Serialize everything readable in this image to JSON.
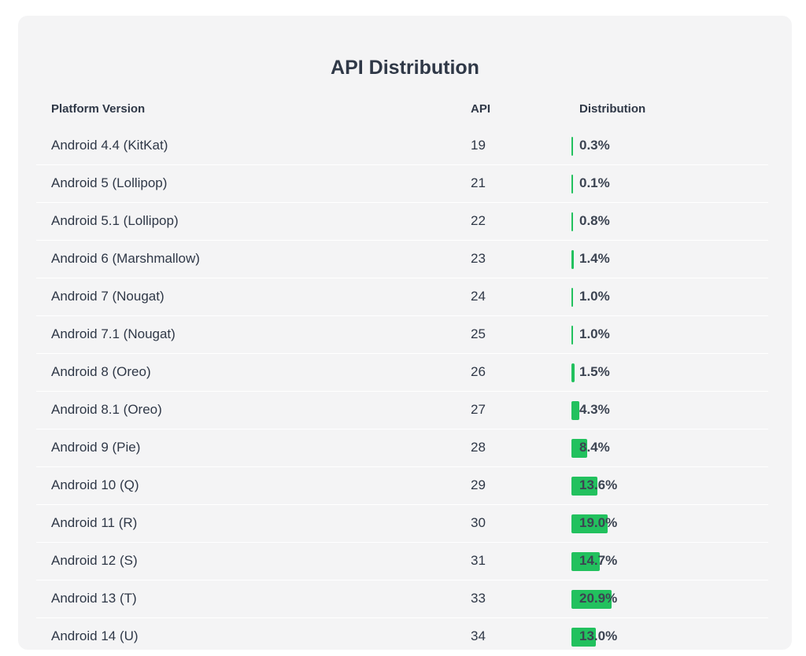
{
  "header": {
    "title": "API Distribution",
    "col_platform": "Platform Version",
    "col_api": "API",
    "col_distribution": "Distribution"
  },
  "colors": {
    "bar": "#22c15e",
    "card_bg": "#f4f4f5",
    "text": "#2f3847"
  },
  "chart_data": {
    "type": "table",
    "title": "API Distribution",
    "columns": [
      "Platform Version",
      "API",
      "Distribution"
    ],
    "rows": [
      {
        "platform": "Android 4.4 (KitKat)",
        "api": "19",
        "pct_label": "0.3%",
        "value": 0.3
      },
      {
        "platform": "Android 5 (Lollipop)",
        "api": "21",
        "pct_label": "0.1%",
        "value": 0.1
      },
      {
        "platform": "Android 5.1 (Lollipop)",
        "api": "22",
        "pct_label": "0.8%",
        "value": 0.8
      },
      {
        "platform": "Android 6 (Marshmallow)",
        "api": "23",
        "pct_label": "1.4%",
        "value": 1.4
      },
      {
        "platform": "Android 7 (Nougat)",
        "api": "24",
        "pct_label": "1.0%",
        "value": 1.0
      },
      {
        "platform": "Android 7.1 (Nougat)",
        "api": "25",
        "pct_label": "1.0%",
        "value": 1.0
      },
      {
        "platform": "Android 8 (Oreo)",
        "api": "26",
        "pct_label": "1.5%",
        "value": 1.5
      },
      {
        "platform": "Android 8.1 (Oreo)",
        "api": "27",
        "pct_label": "4.3%",
        "value": 4.3
      },
      {
        "platform": "Android 9 (Pie)",
        "api": "28",
        "pct_label": "8.4%",
        "value": 8.4
      },
      {
        "platform": "Android 10 (Q)",
        "api": "29",
        "pct_label": "13.6%",
        "value": 13.6
      },
      {
        "platform": "Android 11 (R)",
        "api": "30",
        "pct_label": "19.0%",
        "value": 19.0
      },
      {
        "platform": "Android 12 (S)",
        "api": "31",
        "pct_label": "14.7%",
        "value": 14.7
      },
      {
        "platform": "Android 13 (T)",
        "api": "33",
        "pct_label": "20.9%",
        "value": 20.9
      },
      {
        "platform": "Android 14 (U)",
        "api": "34",
        "pct_label": "13.0%",
        "value": 13.0
      }
    ]
  }
}
